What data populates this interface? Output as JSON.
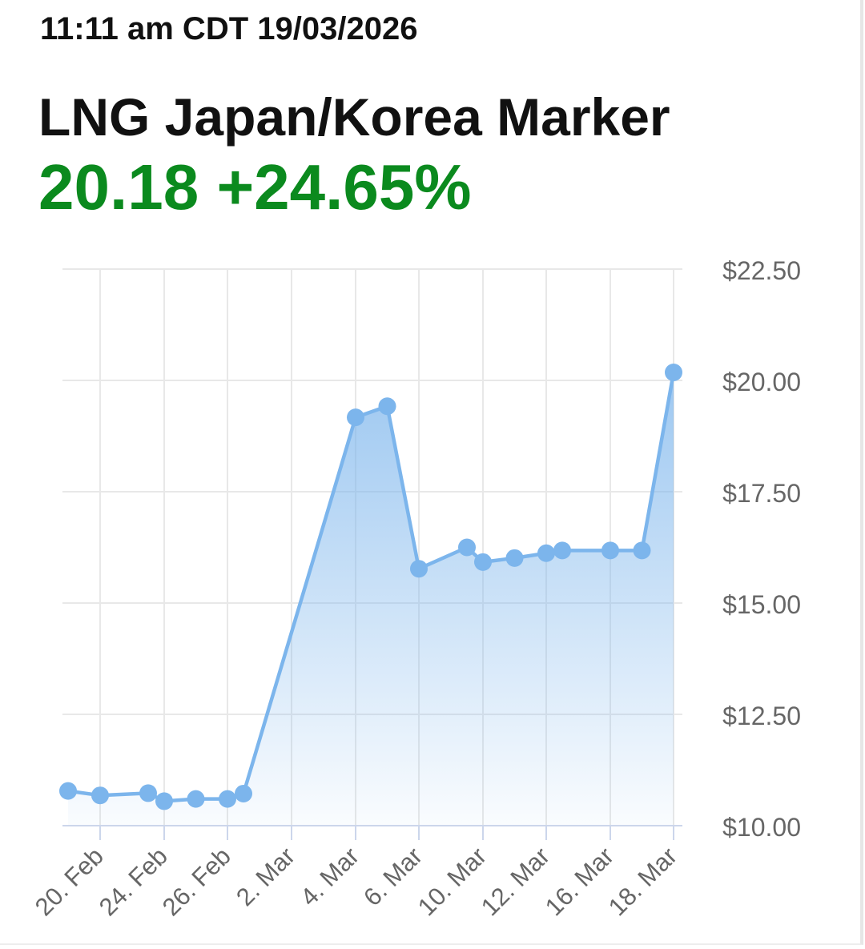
{
  "header": {
    "timestamp": "11:11 am CDT 19/03/2026",
    "title": "LNG Japan/Korea Marker",
    "price": "20.18",
    "change": "+24.65%"
  },
  "colors": {
    "positive": "#0b8a1e",
    "series": "#7cb5ec",
    "grid": "#e8e8e8",
    "axis_text": "#666666",
    "axis_line": "#ccd6eb"
  },
  "chart_data": {
    "type": "area",
    "title": "",
    "xlabel": "",
    "ylabel": "",
    "ylim": [
      10.0,
      22.5
    ],
    "y_ticks": [
      "$10.00",
      "$12.50",
      "$15.00",
      "$17.50",
      "$20.00",
      "$22.50"
    ],
    "y_tick_values": [
      10.0,
      12.5,
      15.0,
      17.5,
      20.0,
      22.5
    ],
    "y_axis_side": "right",
    "x_ticks": [
      "20. Feb",
      "24. Feb",
      "26. Feb",
      "2. Mar",
      "4. Mar",
      "6. Mar",
      "10. Mar",
      "12. Mar",
      "16. Mar",
      "18. Mar"
    ],
    "grid": true,
    "legend": "none",
    "series": [
      {
        "dates": [
          "19. Feb",
          "20. Feb",
          "23. Feb",
          "24. Feb",
          "25. Feb",
          "26. Feb",
          "27. Feb",
          "4. Mar",
          "5. Mar",
          "6. Mar",
          "9. Mar",
          "10. Mar",
          "11. Mar",
          "12. Mar",
          "13. Mar",
          "16. Mar",
          "17. Mar",
          "18. Mar"
        ],
        "values": [
          10.78,
          10.68,
          10.73,
          10.55,
          10.6,
          10.6,
          10.72,
          19.17,
          19.42,
          15.77,
          16.25,
          15.92,
          16.01,
          16.12,
          16.18,
          16.18,
          16.18,
          20.18
        ]
      }
    ]
  }
}
